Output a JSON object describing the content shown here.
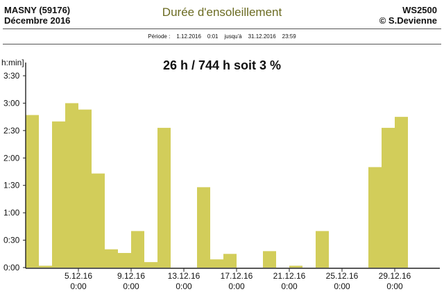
{
  "header": {
    "location": "MASNY (59176)",
    "month": "Décembre 2016",
    "title": "Durée d'ensoleillement",
    "station": "WS2500",
    "copyright": "© S.Devienne"
  },
  "period": {
    "label": "Période :",
    "start_date": "1.12.2016",
    "start_time": "0:01",
    "until_label": "jusqu'à",
    "end_date": "31.12.2016",
    "end_time": "23:59"
  },
  "summary": "26 h / 744 h  soit  3 %",
  "colors": {
    "bar": "#d2cd5a",
    "axis": "#222222"
  },
  "chart_data": {
    "type": "bar",
    "ylabel": "h:min]",
    "ylim": [
      0,
      210
    ],
    "yunit": "minutes",
    "y_ticks": [
      {
        "value": 0,
        "label": "0:00"
      },
      {
        "value": 30,
        "label": "0:30"
      },
      {
        "value": 60,
        "label": "1:00"
      },
      {
        "value": 90,
        "label": "1:30"
      },
      {
        "value": 120,
        "label": "2:00"
      },
      {
        "value": 150,
        "label": "2:30"
      },
      {
        "value": 180,
        "label": "3:00"
      },
      {
        "value": 210,
        "label": "3:30"
      }
    ],
    "x_ticks": [
      {
        "day": 5,
        "label1": "5.12.16",
        "label2": "0:00"
      },
      {
        "day": 9,
        "label1": "9.12.16",
        "label2": "0:00"
      },
      {
        "day": 13,
        "label1": "13.12.16",
        "label2": "0:00"
      },
      {
        "day": 17,
        "label1": "17.12.16",
        "label2": "0:00"
      },
      {
        "day": 21,
        "label1": "21.12.16",
        "label2": "0:00"
      },
      {
        "day": 25,
        "label1": "25.12.16",
        "label2": "0:00"
      },
      {
        "day": 29,
        "label1": "29.12.16",
        "label2": "0:00"
      }
    ],
    "days": [
      1,
      2,
      3,
      4,
      5,
      6,
      7,
      8,
      9,
      10,
      11,
      12,
      13,
      14,
      15,
      16,
      17,
      18,
      19,
      20,
      21,
      22,
      23,
      24,
      25,
      26,
      27,
      28,
      29,
      30,
      31
    ],
    "values": [
      167,
      2,
      160,
      180,
      173,
      103,
      20,
      16,
      40,
      6,
      153,
      0,
      0,
      88,
      9,
      15,
      0,
      0,
      18,
      0,
      2,
      0,
      40,
      0,
      0,
      0,
      110,
      153,
      165,
      0,
      0
    ]
  }
}
